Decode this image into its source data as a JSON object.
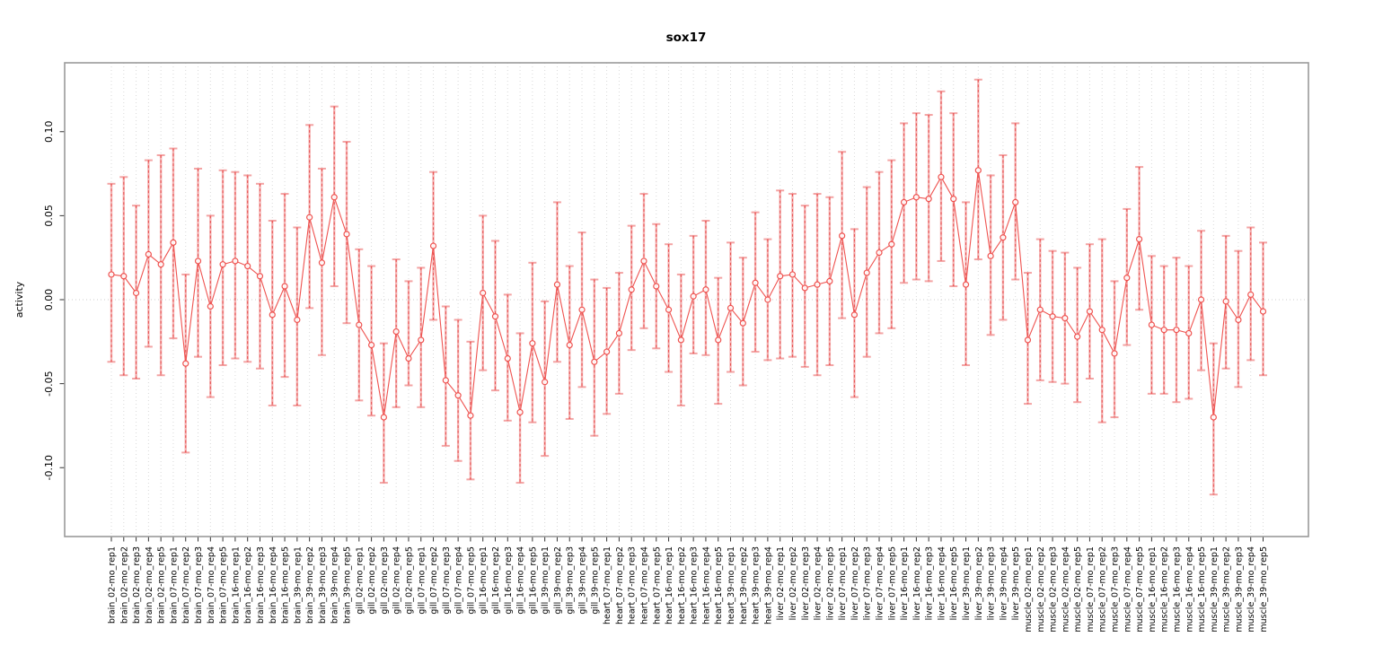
{
  "title": "sox17",
  "ylabel": "activity",
  "colors": {
    "point": "#ef5350",
    "line": "#ef5350",
    "errorbar_pale": "#eb5a5a",
    "errorbar_dash": "#e84545",
    "gridline": "#d9d9d9",
    "zero_line": "#cccccc",
    "frame": "#9a9a9a",
    "tick": "#333333",
    "text": "#000000"
  },
  "chart_data": {
    "type": "scatter",
    "subtype": "points-with-error-bars-connected-by-line",
    "title": "sox17",
    "xlabel": "",
    "ylabel": "activity",
    "ylim": [
      -0.141,
      0.141
    ],
    "yticks": [
      0.1,
      0.05,
      0.0,
      -0.05,
      -0.1
    ],
    "ytick_labels": [
      "0.10",
      "0.05",
      "0.00",
      "-0.05",
      "-0.10"
    ],
    "grid": "vertical dotted gridline at every category; dotted horizontal line at y=0",
    "legend": "none",
    "groups": [
      "brain",
      "gill",
      "heart",
      "liver",
      "muscle"
    ],
    "points": [
      {
        "label": "brain_02-mo_rep1",
        "value": 0.015,
        "lo": -0.037,
        "hi": 0.069
      },
      {
        "label": "brain_02-mo_rep2",
        "value": 0.014,
        "lo": -0.045,
        "hi": 0.073
      },
      {
        "label": "brain_02-mo_rep3",
        "value": 0.004,
        "lo": -0.047,
        "hi": 0.056
      },
      {
        "label": "brain_02-mo_rep4",
        "value": 0.027,
        "lo": -0.028,
        "hi": 0.083
      },
      {
        "label": "brain_02-mo_rep5",
        "value": 0.021,
        "lo": -0.045,
        "hi": 0.086
      },
      {
        "label": "brain_07-mo_rep1",
        "value": 0.034,
        "lo": -0.023,
        "hi": 0.09
      },
      {
        "label": "brain_07-mo_rep2",
        "value": -0.038,
        "lo": -0.091,
        "hi": 0.015
      },
      {
        "label": "brain_07-mo_rep3",
        "value": 0.023,
        "lo": -0.034,
        "hi": 0.078
      },
      {
        "label": "brain_07-mo_rep4",
        "value": -0.004,
        "lo": -0.058,
        "hi": 0.05
      },
      {
        "label": "brain_07-mo_rep5",
        "value": 0.021,
        "lo": -0.039,
        "hi": 0.077
      },
      {
        "label": "brain_16-mo_rep1",
        "value": 0.023,
        "lo": -0.035,
        "hi": 0.076
      },
      {
        "label": "brain_16-mo_rep2",
        "value": 0.02,
        "lo": -0.037,
        "hi": 0.074
      },
      {
        "label": "brain_16-mo_rep3",
        "value": 0.014,
        "lo": -0.041,
        "hi": 0.069
      },
      {
        "label": "brain_16-mo_rep4",
        "value": -0.009,
        "lo": -0.063,
        "hi": 0.047
      },
      {
        "label": "brain_16-mo_rep5",
        "value": 0.008,
        "lo": -0.046,
        "hi": 0.063
      },
      {
        "label": "brain_39-mo_rep1",
        "value": -0.012,
        "lo": -0.063,
        "hi": 0.043
      },
      {
        "label": "brain_39-mo_rep2",
        "value": 0.049,
        "lo": -0.005,
        "hi": 0.104
      },
      {
        "label": "brain_39-mo_rep3",
        "value": 0.022,
        "lo": -0.033,
        "hi": 0.078
      },
      {
        "label": "brain_39-mo_rep4",
        "value": 0.061,
        "lo": 0.008,
        "hi": 0.115
      },
      {
        "label": "brain_39-mo_rep5",
        "value": 0.039,
        "lo": -0.014,
        "hi": 0.094
      },
      {
        "label": "gill_02-mo_rep1",
        "value": -0.015,
        "lo": -0.06,
        "hi": 0.03
      },
      {
        "label": "gill_02-mo_rep2",
        "value": -0.027,
        "lo": -0.069,
        "hi": 0.02
      },
      {
        "label": "gill_02-mo_rep3",
        "value": -0.07,
        "lo": -0.109,
        "hi": -0.026
      },
      {
        "label": "gill_02-mo_rep4",
        "value": -0.019,
        "lo": -0.064,
        "hi": 0.024
      },
      {
        "label": "gill_02-mo_rep5",
        "value": -0.035,
        "lo": -0.051,
        "hi": 0.011
      },
      {
        "label": "gill_07-mo_rep1",
        "value": -0.024,
        "lo": -0.064,
        "hi": 0.019
      },
      {
        "label": "gill_07-mo_rep2",
        "value": 0.032,
        "lo": -0.012,
        "hi": 0.076
      },
      {
        "label": "gill_07-mo_rep3",
        "value": -0.048,
        "lo": -0.087,
        "hi": -0.004
      },
      {
        "label": "gill_07-mo_rep4",
        "value": -0.057,
        "lo": -0.096,
        "hi": -0.012
      },
      {
        "label": "gill_07-mo_rep5",
        "value": -0.069,
        "lo": -0.107,
        "hi": -0.025
      },
      {
        "label": "gill_16-mo_rep1",
        "value": 0.004,
        "lo": -0.042,
        "hi": 0.05
      },
      {
        "label": "gill_16-mo_rep2",
        "value": -0.01,
        "lo": -0.054,
        "hi": 0.035
      },
      {
        "label": "gill_16-mo_rep3",
        "value": -0.035,
        "lo": -0.072,
        "hi": 0.003
      },
      {
        "label": "gill_16-mo_rep4",
        "value": -0.067,
        "lo": -0.109,
        "hi": -0.02
      },
      {
        "label": "gill_16-mo_rep5",
        "value": -0.026,
        "lo": -0.073,
        "hi": 0.022
      },
      {
        "label": "gill_39-mo_rep1",
        "value": -0.049,
        "lo": -0.093,
        "hi": -0.001
      },
      {
        "label": "gill_39-mo_rep2",
        "value": 0.009,
        "lo": -0.037,
        "hi": 0.058
      },
      {
        "label": "gill_39-mo_rep3",
        "value": -0.027,
        "lo": -0.071,
        "hi": 0.02
      },
      {
        "label": "gill_39-mo_rep4",
        "value": -0.006,
        "lo": -0.052,
        "hi": 0.04
      },
      {
        "label": "gill_39-mo_rep5",
        "value": -0.037,
        "lo": -0.081,
        "hi": 0.012
      },
      {
        "label": "heart_07-mo_rep1",
        "value": -0.031,
        "lo": -0.068,
        "hi": 0.007
      },
      {
        "label": "heart_07-mo_rep2",
        "value": -0.02,
        "lo": -0.056,
        "hi": 0.016
      },
      {
        "label": "heart_07-mo_rep3",
        "value": 0.006,
        "lo": -0.03,
        "hi": 0.044
      },
      {
        "label": "heart_07-mo_rep4",
        "value": 0.023,
        "lo": -0.017,
        "hi": 0.063
      },
      {
        "label": "heart_07-mo_rep5",
        "value": 0.008,
        "lo": -0.029,
        "hi": 0.045
      },
      {
        "label": "heart_16-mo_rep1",
        "value": -0.006,
        "lo": -0.043,
        "hi": 0.033
      },
      {
        "label": "heart_16-mo_rep2",
        "value": -0.024,
        "lo": -0.063,
        "hi": 0.015
      },
      {
        "label": "heart_16-mo_rep3",
        "value": 0.002,
        "lo": -0.032,
        "hi": 0.038
      },
      {
        "label": "heart_16-mo_rep4",
        "value": 0.006,
        "lo": -0.033,
        "hi": 0.047
      },
      {
        "label": "heart_16-mo_rep5",
        "value": -0.024,
        "lo": -0.062,
        "hi": 0.013
      },
      {
        "label": "heart_39-mo_rep1",
        "value": -0.005,
        "lo": -0.043,
        "hi": 0.034
      },
      {
        "label": "heart_39-mo_rep2",
        "value": -0.014,
        "lo": -0.051,
        "hi": 0.025
      },
      {
        "label": "heart_39-mo_rep3",
        "value": 0.01,
        "lo": -0.031,
        "hi": 0.052
      },
      {
        "label": "heart_39-mo_rep4",
        "value": 0.0,
        "lo": -0.036,
        "hi": 0.036
      },
      {
        "label": "liver_02-mo_rep1",
        "value": 0.014,
        "lo": -0.035,
        "hi": 0.065
      },
      {
        "label": "liver_02-mo_rep2",
        "value": 0.015,
        "lo": -0.034,
        "hi": 0.063
      },
      {
        "label": "liver_02-mo_rep3",
        "value": 0.007,
        "lo": -0.04,
        "hi": 0.056
      },
      {
        "label": "liver_02-mo_rep4",
        "value": 0.009,
        "lo": -0.045,
        "hi": 0.063
      },
      {
        "label": "liver_02-mo_rep5",
        "value": 0.011,
        "lo": -0.039,
        "hi": 0.061
      },
      {
        "label": "liver_07-mo_rep1",
        "value": 0.038,
        "lo": -0.011,
        "hi": 0.088
      },
      {
        "label": "liver_07-mo_rep2",
        "value": -0.009,
        "lo": -0.058,
        "hi": 0.042
      },
      {
        "label": "liver_07-mo_rep3",
        "value": 0.016,
        "lo": -0.034,
        "hi": 0.067
      },
      {
        "label": "liver_07-mo_rep4",
        "value": 0.028,
        "lo": -0.02,
        "hi": 0.076
      },
      {
        "label": "liver_07-mo_rep5",
        "value": 0.033,
        "lo": -0.017,
        "hi": 0.083
      },
      {
        "label": "liver_16-mo_rep1",
        "value": 0.058,
        "lo": 0.01,
        "hi": 0.105
      },
      {
        "label": "liver_16-mo_rep2",
        "value": 0.061,
        "lo": 0.012,
        "hi": 0.111
      },
      {
        "label": "liver_16-mo_rep3",
        "value": 0.06,
        "lo": 0.011,
        "hi": 0.11
      },
      {
        "label": "liver_16-mo_rep4",
        "value": 0.073,
        "lo": 0.023,
        "hi": 0.124
      },
      {
        "label": "liver_16-mo_rep5",
        "value": 0.06,
        "lo": 0.008,
        "hi": 0.111
      },
      {
        "label": "liver_39-mo_rep1",
        "value": 0.009,
        "lo": -0.039,
        "hi": 0.058
      },
      {
        "label": "liver_39-mo_rep2",
        "value": 0.077,
        "lo": 0.024,
        "hi": 0.131
      },
      {
        "label": "liver_39-mo_rep3",
        "value": 0.026,
        "lo": -0.021,
        "hi": 0.074
      },
      {
        "label": "liver_39-mo_rep4",
        "value": 0.037,
        "lo": -0.012,
        "hi": 0.086
      },
      {
        "label": "liver_39-mo_rep5",
        "value": 0.058,
        "lo": 0.012,
        "hi": 0.105
      },
      {
        "label": "muscle_02-mo_rep1",
        "value": -0.024,
        "lo": -0.062,
        "hi": 0.016
      },
      {
        "label": "muscle_02-mo_rep2",
        "value": -0.006,
        "lo": -0.048,
        "hi": 0.036
      },
      {
        "label": "muscle_02-mo_rep3",
        "value": -0.01,
        "lo": -0.049,
        "hi": 0.029
      },
      {
        "label": "muscle_02-mo_rep4",
        "value": -0.011,
        "lo": -0.05,
        "hi": 0.028
      },
      {
        "label": "muscle_02-mo_rep5",
        "value": -0.022,
        "lo": -0.061,
        "hi": 0.019
      },
      {
        "label": "muscle_07-mo_rep1",
        "value": -0.007,
        "lo": -0.047,
        "hi": 0.033
      },
      {
        "label": "muscle_07-mo_rep2",
        "value": -0.018,
        "lo": -0.073,
        "hi": 0.036
      },
      {
        "label": "muscle_07-mo_rep3",
        "value": -0.032,
        "lo": -0.07,
        "hi": 0.011
      },
      {
        "label": "muscle_07-mo_rep4",
        "value": 0.013,
        "lo": -0.027,
        "hi": 0.054
      },
      {
        "label": "muscle_07-mo_rep5",
        "value": 0.036,
        "lo": -0.006,
        "hi": 0.079
      },
      {
        "label": "muscle_16-mo_rep1",
        "value": -0.015,
        "lo": -0.056,
        "hi": 0.026
      },
      {
        "label": "muscle_16-mo_rep2",
        "value": -0.018,
        "lo": -0.056,
        "hi": 0.02
      },
      {
        "label": "muscle_16-mo_rep3",
        "value": -0.018,
        "lo": -0.061,
        "hi": 0.025
      },
      {
        "label": "muscle_16-mo_rep4",
        "value": -0.02,
        "lo": -0.059,
        "hi": 0.02
      },
      {
        "label": "muscle_16-mo_rep5",
        "value": 0.0,
        "lo": -0.042,
        "hi": 0.041
      },
      {
        "label": "muscle_39-mo_rep1",
        "value": -0.07,
        "lo": -0.116,
        "hi": -0.026
      },
      {
        "label": "muscle_39-mo_rep2",
        "value": -0.001,
        "lo": -0.041,
        "hi": 0.038
      },
      {
        "label": "muscle_39-mo_rep3",
        "value": -0.012,
        "lo": -0.052,
        "hi": 0.029
      },
      {
        "label": "muscle_39-mo_rep4",
        "value": 0.003,
        "lo": -0.036,
        "hi": 0.043
      },
      {
        "label": "muscle_39-mo_rep5",
        "value": -0.007,
        "lo": -0.045,
        "hi": 0.034
      }
    ]
  }
}
